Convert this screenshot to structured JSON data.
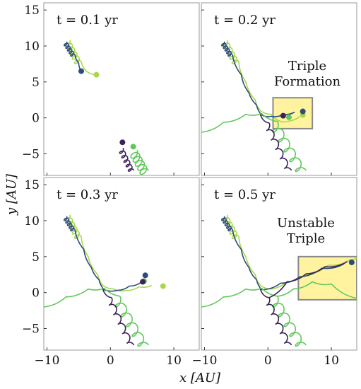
{
  "chart_data": {
    "type": "line",
    "layout": "2x2 panels, shared axes",
    "xlabel": "x [AU]",
    "ylabel": "y [AU]",
    "xlim": [
      -10.5,
      14
    ],
    "ylim": [
      -8,
      16
    ],
    "xticks": [
      -10,
      0,
      10
    ],
    "yticks": [
      -5,
      0,
      5,
      10,
      15
    ],
    "grid": false,
    "colors": {
      "c1": "#2f4b7c",
      "c2": "#3b2358",
      "c3": "#a6d948",
      "c4": "#5fc85a",
      "box_fill": "#fff3a0",
      "box_edge": "#888888"
    },
    "panels": [
      {
        "label": "t = 0.1 yr",
        "annotation": "",
        "box": null,
        "tracks": [
          {
            "color": "c3",
            "loop": {
              "start": [
                -6.4,
                10.8
              ],
              "end": [
                -4.6,
                7.8
              ],
              "r": 0.55
            },
            "tail": [
              [
                -4.6,
                7.8
              ],
              [
                -3.8,
                6.5
              ],
              [
                -2.2,
                6.0
              ]
            ],
            "end": [
              -2.2,
              6.0
            ]
          },
          {
            "color": "c1",
            "loop": {
              "start": [
                -6.9,
                10.6
              ],
              "end": [
                -5.6,
                8.8
              ],
              "r": 0.35
            },
            "tail": [
              [
                -5.6,
                8.8
              ],
              [
                -5.0,
                7.6
              ],
              [
                -4.6,
                6.5
              ]
            ],
            "end": [
              -4.6,
              6.5
            ]
          },
          {
            "color": "c4",
            "loop": {
              "start": [
                4.2,
                -4.5
              ],
              "end": [
                6.0,
                -7.3
              ],
              "r": 0.75
            },
            "tail": [],
            "end": [
              3.6,
              -4.0
            ]
          },
          {
            "color": "c2",
            "loop": {
              "start": [
                2.0,
                -4.2
              ],
              "end": [
                3.7,
                -7.3
              ],
              "r": 0.45
            },
            "tail": [],
            "end": [
              1.9,
              -3.4
            ]
          }
        ]
      },
      {
        "label": "t = 0.2 yr",
        "annotation": "Triple\nFormation",
        "box": {
          "x0": 0.8,
          "x1": 7.0,
          "y0": -1.5,
          "y1": 2.8
        },
        "tracks": [
          {
            "color": "c3",
            "loop": {
              "start": [
                -6.4,
                10.8
              ],
              "end": [
                -4.6,
                7.8
              ],
              "r": 0.55
            },
            "tail": [
              [
                -4.6,
                7.8
              ],
              [
                -3.5,
                5.0
              ],
              [
                -2.0,
                2.5
              ],
              [
                -1.2,
                1.0
              ],
              [
                0.5,
                0.5
              ],
              [
                2.0,
                -0.5
              ],
              [
                3.5,
                -0.4
              ],
              [
                5.0,
                0.2
              ]
            ],
            "end": [
              5.5,
              0.4
            ]
          },
          {
            "color": "c1",
            "loop": {
              "start": [
                -6.9,
                10.6
              ],
              "end": [
                -5.6,
                8.8
              ],
              "r": 0.35
            },
            "tail": [
              [
                -5.6,
                8.8
              ],
              [
                -4.2,
                6.0
              ],
              [
                -3.0,
                3.5
              ],
              [
                -1.8,
                1.8
              ],
              [
                -1.0,
                0.4
              ],
              [
                0.5,
                0.2
              ],
              [
                2.5,
                0.5
              ],
              [
                4.2,
                0.8
              ]
            ],
            "end": [
              5.5,
              0.9
            ]
          },
          {
            "color": "c4",
            "loop": {
              "start": [
                1.5,
                -0.5
              ],
              "end": [
                6.0,
                -7.3
              ],
              "r": 0.8
            },
            "tail": [
              [
                -10.5,
                -2.0
              ],
              [
                -7.0,
                -0.6
              ],
              [
                -3.5,
                0.5
              ],
              [
                -1.0,
                0.6
              ],
              [
                1.5,
                -0.5
              ]
            ],
            "end": [
              3.3,
              0.1
            ]
          },
          {
            "color": "c2",
            "loop": {
              "start": [
                0.2,
                -0.7
              ],
              "end": [
                3.7,
                -7.3
              ],
              "r": 0.45
            },
            "tail": [
              [
                -1.2,
                0.5
              ],
              [
                -0.6,
                -0.4
              ],
              [
                0.2,
                -0.7
              ]
            ],
            "end": [
              2.4,
              0.3
            ]
          }
        ]
      },
      {
        "label": "t = 0.3 yr",
        "annotation": "",
        "box": null,
        "tracks": [
          {
            "color": "c3",
            "loop": {
              "start": [
                -6.4,
                10.8
              ],
              "end": [
                -4.6,
                7.8
              ],
              "r": 0.55
            },
            "tail": [
              [
                -4.6,
                7.8
              ],
              [
                -3.5,
                5.0
              ],
              [
                -2.0,
                2.5
              ],
              [
                -1.2,
                1.0
              ],
              [
                0.5,
                0.5
              ],
              [
                2.5,
                0.3
              ],
              [
                4.5,
                0.8
              ],
              [
                6.5,
                1.0
              ]
            ],
            "end": [
              8.3,
              0.9
            ]
          },
          {
            "color": "c1",
            "loop": {
              "start": [
                -6.9,
                10.6
              ],
              "end": [
                -5.6,
                8.8
              ],
              "r": 0.35
            },
            "tail": [
              [
                -5.6,
                8.8
              ],
              [
                -4.2,
                6.0
              ],
              [
                -3.0,
                3.5
              ],
              [
                -1.8,
                1.8
              ],
              [
                -1.0,
                0.4
              ],
              [
                1.0,
                0.3
              ],
              [
                3.0,
                0.9
              ],
              [
                4.8,
                1.4
              ]
            ],
            "end": [
              5.5,
              2.4
            ]
          },
          {
            "color": "c4",
            "loop": {
              "start": [
                1.5,
                -0.5
              ],
              "end": [
                6.0,
                -7.3
              ],
              "r": 0.8
            },
            "tail": [
              [
                -10.5,
                -2.0
              ],
              [
                -7.0,
                -0.6
              ],
              [
                -3.5,
                0.5
              ],
              [
                -1.0,
                0.6
              ],
              [
                1.5,
                -0.5
              ]
            ],
            "end": [
              5.3,
              1.6
            ]
          },
          {
            "color": "c2",
            "loop": {
              "start": [
                0.2,
                -0.7
              ],
              "end": [
                3.7,
                -7.3
              ],
              "r": 0.45
            },
            "tail": [
              [
                -1.2,
                0.5
              ],
              [
                -0.6,
                -0.4
              ],
              [
                0.2,
                -0.7
              ]
            ],
            "end": [
              5.1,
              1.5
            ]
          }
        ]
      },
      {
        "label": "t = 0.5 yr",
        "annotation": "Unstable\nTriple",
        "box": {
          "x0": 4.8,
          "x1": 14.0,
          "y0": -1.0,
          "y1": 5.0
        },
        "tracks": [
          {
            "color": "c3",
            "loop": {
              "start": [
                -6.4,
                10.8
              ],
              "end": [
                -4.6,
                7.8
              ],
              "r": 0.55
            },
            "tail": [
              [
                -4.6,
                7.8
              ],
              [
                -3.5,
                5.0
              ],
              [
                -2.0,
                2.5
              ],
              [
                -1.2,
                1.0
              ],
              [
                0.5,
                0.5
              ],
              [
                3.0,
                1.5
              ],
              [
                6.0,
                2.5
              ],
              [
                9.5,
                3.8
              ],
              [
                13.0,
                4.6
              ],
              [
                14.0,
                4.8
              ]
            ],
            "end": null
          },
          {
            "color": "c1",
            "loop": {
              "start": [
                -6.9,
                10.6
              ],
              "end": [
                -5.6,
                8.8
              ],
              "r": 0.35
            },
            "tail": [
              [
                -5.6,
                8.8
              ],
              [
                -4.2,
                6.0
              ],
              [
                -3.0,
                3.5
              ],
              [
                -1.8,
                1.8
              ],
              [
                -1.0,
                0.4
              ],
              [
                2.0,
                1.3
              ],
              [
                5.0,
                2.2
              ],
              [
                8.5,
                3.4
              ],
              [
                12.0,
                4.0
              ]
            ],
            "end": [
              13.2,
              4.2
            ]
          },
          {
            "color": "c4",
            "loop": {
              "start": [
                1.5,
                -0.5
              ],
              "end": [
                6.0,
                -7.3
              ],
              "r": 0.8
            },
            "tail": [
              [
                -10.5,
                -2.0
              ],
              [
                -7.0,
                -0.6
              ],
              [
                -3.5,
                0.5
              ],
              [
                -1.0,
                0.6
              ],
              [
                1.5,
                -0.5
              ],
              [
                4.0,
                0.5
              ],
              [
                7.0,
                1.5
              ],
              [
                10.0,
                1.2
              ],
              [
                14.0,
                -0.8
              ]
            ],
            "end": null
          },
          {
            "color": "c2",
            "loop": {
              "start": [
                0.2,
                -0.7
              ],
              "end": [
                3.7,
                -7.3
              ],
              "r": 0.45
            },
            "tail": [
              [
                -1.2,
                0.5
              ],
              [
                -0.6,
                -0.4
              ],
              [
                0.2,
                -0.7
              ],
              [
                3.0,
                1.5
              ],
              [
                6.0,
                2.6
              ],
              [
                9.0,
                3.6
              ],
              [
                12.5,
                4.3
              ]
            ],
            "end": null
          }
        ]
      }
    ]
  }
}
